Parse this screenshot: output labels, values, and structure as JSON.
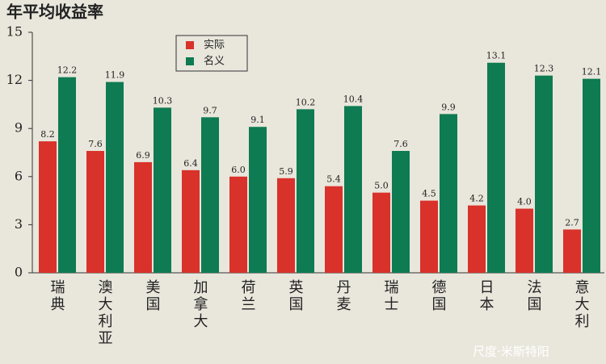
{
  "chart_data": {
    "type": "bar",
    "title": "年平均收益率",
    "categories": [
      "瑞典",
      "澳大利亚",
      "美国",
      "加拿大",
      "荷兰",
      "英国",
      "丹麦",
      "瑞士",
      "德国",
      "日本",
      "法国",
      "意大利"
    ],
    "series": [
      {
        "name": "实际",
        "color": "#d8322b",
        "values": [
          8.2,
          7.6,
          6.9,
          6.4,
          6.0,
          5.9,
          5.4,
          5.0,
          4.5,
          4.2,
          4.0,
          2.7
        ],
        "value_labels": [
          "8.2",
          "7.6",
          "6.9",
          "6.4",
          "6.0",
          "5.9",
          "5.4",
          "5.0",
          "4.5",
          "4.2",
          "4.0",
          "2.7"
        ]
      },
      {
        "name": "名义",
        "color": "#0e7b52",
        "values": [
          12.2,
          11.9,
          10.3,
          9.7,
          9.1,
          10.2,
          10.4,
          7.6,
          9.9,
          13.1,
          12.3,
          12.1
        ],
        "value_labels": [
          "12.2",
          "11.9",
          "10.3",
          "9.7",
          "9.1",
          "10.2",
          "10.4",
          "7.6",
          "9.9",
          "13.1",
          "12.3",
          "12.1"
        ]
      }
    ],
    "ylim": [
      0,
      15
    ],
    "yticks": [
      0,
      3,
      6,
      9,
      12,
      15
    ],
    "grid": false,
    "watermark": "尺度·米斯特阳"
  }
}
